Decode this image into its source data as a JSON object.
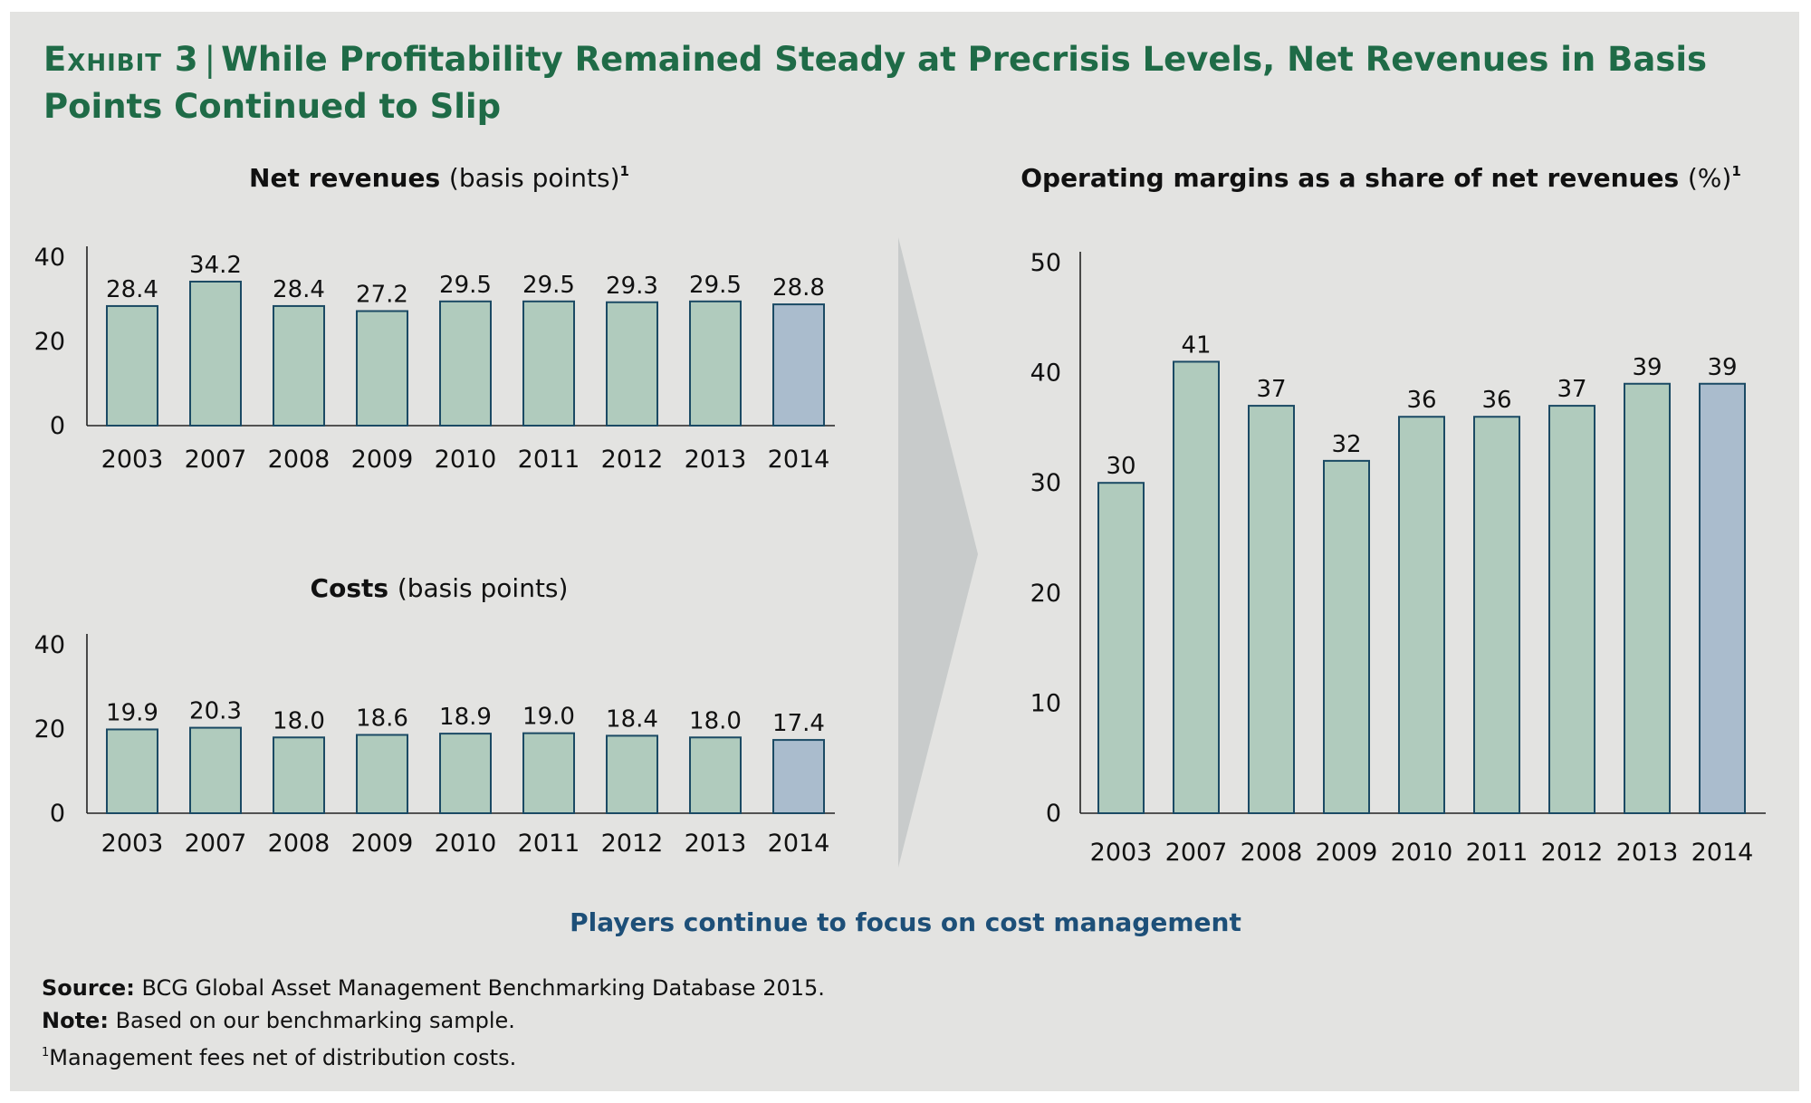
{
  "title": {
    "exhibit": "Exhibit 3",
    "separator": "|",
    "text": "While Profitability Remained Steady at Precrisis Levels, Net Revenues in Basis Points Continued to Slip"
  },
  "colors": {
    "bar": "#b0cbbd",
    "highlight": "#aabccd",
    "bar_stroke": "#1b4a64",
    "arrow": "#c8cbcb",
    "title": "#1f6b47",
    "tagline": "#1d4f78"
  },
  "chart_data": [
    {
      "id": "net-revenues",
      "type": "bar",
      "title": "Net revenues",
      "title_unit": "(basis points)",
      "title_sup": "1",
      "categories": [
        "2003",
        "2007",
        "2008",
        "2009",
        "2010",
        "2011",
        "2012",
        "2013",
        "2014"
      ],
      "values": [
        28.4,
        34.2,
        28.4,
        27.2,
        29.5,
        29.5,
        29.3,
        29.5,
        28.8
      ],
      "labels": [
        "28.4",
        "34.2",
        "28.4",
        "27.2",
        "29.5",
        "29.5",
        "29.3",
        "29.5",
        "28.8"
      ],
      "highlight_index": 8,
      "ylim": [
        0,
        40
      ],
      "yticks": [
        "0",
        "20",
        "40"
      ],
      "xlabel": "",
      "ylabel": ""
    },
    {
      "id": "costs",
      "type": "bar",
      "title": "Costs",
      "title_unit": "(basis points)",
      "title_sup": "",
      "categories": [
        "2003",
        "2007",
        "2008",
        "2009",
        "2010",
        "2011",
        "2012",
        "2013",
        "2014"
      ],
      "values": [
        19.9,
        20.3,
        18.0,
        18.6,
        18.9,
        19.0,
        18.4,
        18.0,
        17.4
      ],
      "labels": [
        "19.9",
        "20.3",
        "18.0",
        "18.6",
        "18.9",
        "19.0",
        "18.4",
        "18.0",
        "17.4"
      ],
      "highlight_index": 8,
      "ylim": [
        0,
        40
      ],
      "yticks": [
        "0",
        "20",
        "40"
      ],
      "xlabel": "",
      "ylabel": ""
    },
    {
      "id": "operating-margins",
      "type": "bar",
      "title": "Operating margins as a share of net revenues",
      "title_unit": "(%)",
      "title_sup": "1",
      "categories": [
        "2003",
        "2007",
        "2008",
        "2009",
        "2010",
        "2011",
        "2012",
        "2013",
        "2014"
      ],
      "values": [
        30,
        41,
        37,
        32,
        36,
        36,
        37,
        39,
        39
      ],
      "labels": [
        "30",
        "41",
        "37",
        "32",
        "36",
        "36",
        "37",
        "39",
        "39"
      ],
      "highlight_index": 8,
      "ylim": [
        0,
        50
      ],
      "yticks": [
        "0",
        "10",
        "20",
        "30",
        "40",
        "50"
      ],
      "xlabel": "",
      "ylabel": ""
    }
  ],
  "tagline": "Players continue to focus on cost management",
  "notes": {
    "source_label": "Source:",
    "source_text": "BCG Global Asset Management Benchmarking Database 2015.",
    "note_label": "Note:",
    "note_text": "Based on our benchmarking sample.",
    "footnote_mark": "1",
    "footnote_text": "Management fees net of distribution costs."
  }
}
